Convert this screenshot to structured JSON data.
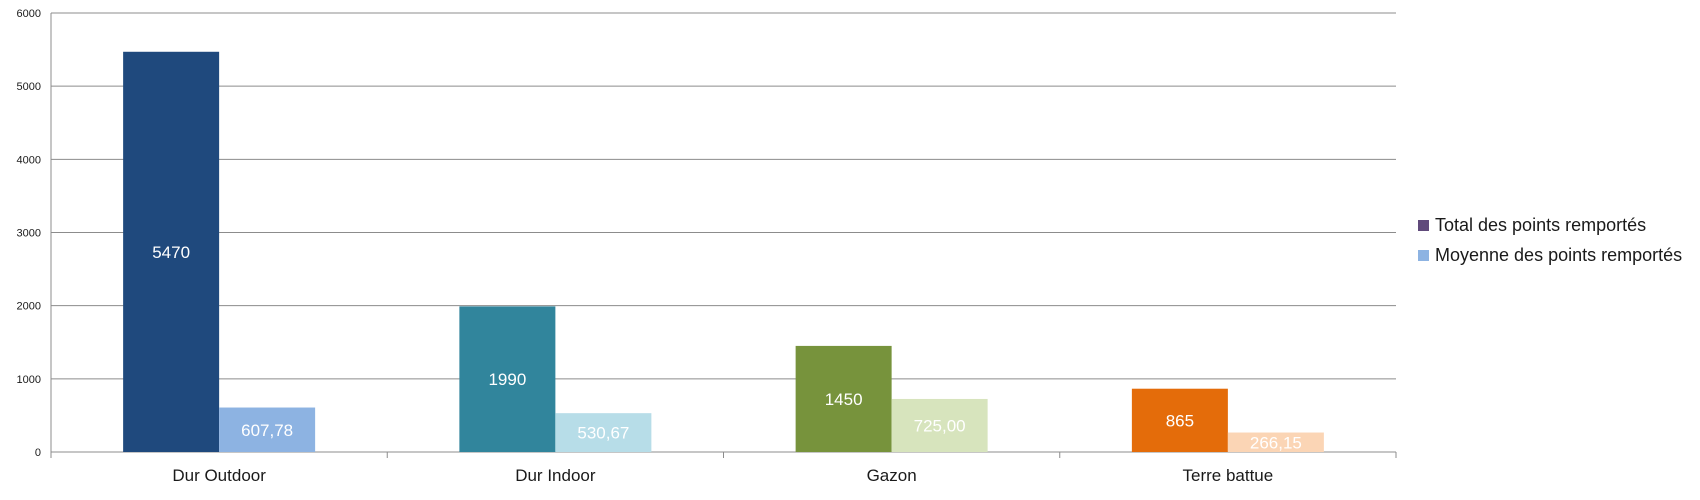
{
  "chart_data": {
    "type": "bar",
    "categories": [
      "Dur Outdoor",
      "Dur Indoor",
      "Gazon",
      "Terre battue"
    ],
    "series": [
      {
        "name": "Total des points remportés",
        "values": [
          5470,
          1990,
          1450,
          865
        ],
        "labels": [
          "5470",
          "1990",
          "1450",
          "865"
        ],
        "colors": [
          "#1f497d",
          "#31859c",
          "#77933c",
          "#e46c0a"
        ]
      },
      {
        "name": "Moyenne des points remportés",
        "values": [
          607.78,
          530.67,
          725.0,
          266.15
        ],
        "labels": [
          "607,78",
          "530,67",
          "725,00",
          "266,15"
        ],
        "colors": [
          "#8db3e2",
          "#b7dde8",
          "#d7e4bd",
          "#fbd5b5"
        ]
      }
    ],
    "legend_colors": [
      "#604a7b",
      "#8db3e2"
    ],
    "y_ticks": [
      "0",
      "1000",
      "2000",
      "3000",
      "4000",
      "5000",
      "6000"
    ],
    "ylim": [
      0,
      6000
    ],
    "grid": true,
    "legend_position": "right"
  }
}
